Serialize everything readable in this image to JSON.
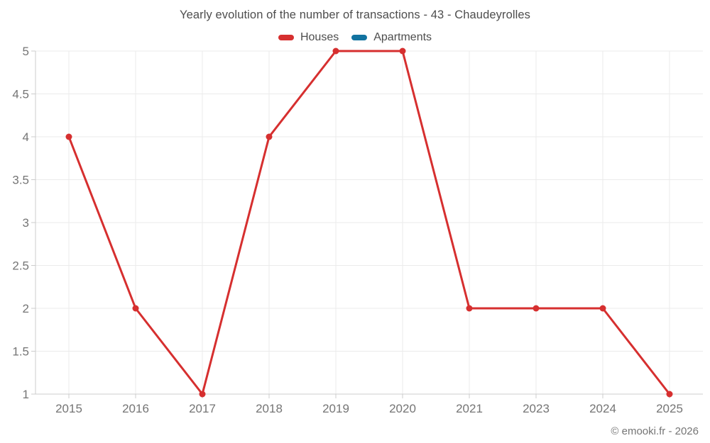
{
  "chart_data": {
    "type": "line",
    "title": "Yearly evolution of the number of transactions - 43 - Chaudeyrolles",
    "categories": [
      "2015",
      "2016",
      "2017",
      "2018",
      "2019",
      "2020",
      "2021",
      "2023",
      "2024",
      "2025"
    ],
    "series": [
      {
        "name": "Houses",
        "color": "#d62f2f",
        "values": [
          4,
          2,
          1,
          4,
          5,
          5,
          2,
          2,
          2,
          1
        ]
      },
      {
        "name": "Apartments",
        "color": "#1273a0",
        "values": []
      }
    ],
    "xlabel": "",
    "ylabel": "",
    "ylim": [
      1,
      5
    ],
    "ytick_step": 0.5,
    "grid": true,
    "legend_position": "top",
    "colors": {
      "grid": "#ebebeb",
      "axis": "#cccccc",
      "tick_text": "#757575"
    }
  },
  "footer": {
    "copyright": "© emooki.fr - 2026"
  }
}
